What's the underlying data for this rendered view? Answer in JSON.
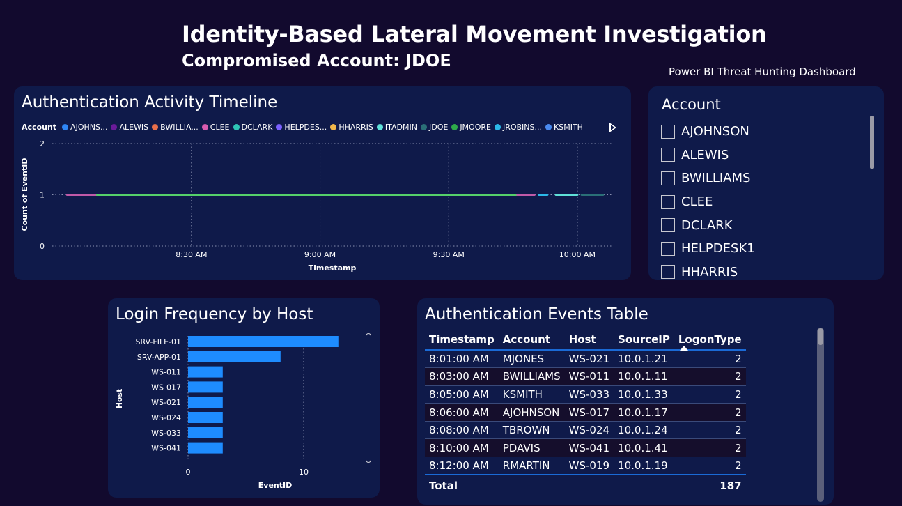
{
  "header": {
    "title": "Identity-Based Lateral Movement Investigation",
    "subtitle": "Compromised Account: JDOE",
    "caption": "Power BI Threat Hunting Dashboard"
  },
  "timeline": {
    "title": "Authentication Activity Timeline",
    "legend_title": "Account",
    "legend_items": [
      {
        "label": "AJOHNS...",
        "color": "#2e86f5"
      },
      {
        "label": "ALEWIS",
        "color": "#6a1b9a"
      },
      {
        "label": "BWILLIA...",
        "color": "#e86f4a"
      },
      {
        "label": "CLEE",
        "color": "#d85bb0"
      },
      {
        "label": "DCLARK",
        "color": "#2ec4b6"
      },
      {
        "label": "HELPDES...",
        "color": "#7b61ff"
      },
      {
        "label": "HHARRIS",
        "color": "#f0b64a"
      },
      {
        "label": "ITADMIN",
        "color": "#5fe0d8"
      },
      {
        "label": "JDOE",
        "color": "#2a6f77"
      },
      {
        "label": "JMOORE",
        "color": "#2eaa4a"
      },
      {
        "label": "JROBINS...",
        "color": "#2bb8e8"
      },
      {
        "label": "KSMITH",
        "color": "#4a8af0"
      }
    ],
    "ylabel": "Count of EventID",
    "xlabel": "Timestamp",
    "yticks": [
      "0",
      "1",
      "2"
    ],
    "xticks": [
      "8:30 AM",
      "9:00 AM",
      "9:30 AM",
      "10:00 AM"
    ]
  },
  "chart_data": [
    {
      "type": "line",
      "title": "Authentication Activity Timeline",
      "xlabel": "Timestamp",
      "ylabel": "Count of EventID",
      "ylim": [
        0,
        2
      ],
      "x_ticks": [
        "8:30 AM",
        "9:00 AM",
        "9:30 AM",
        "10:00 AM"
      ],
      "legend_placement": "top-left",
      "grid": true,
      "series": [
        {
          "name": "CLEE",
          "color": "#c05aa8",
          "segments": [
            [
              "8:01 AM",
              "8:08 AM"
            ]
          ],
          "value": 1
        },
        {
          "name": "JMOORE",
          "color": "#55d06a",
          "segments": [
            [
              "8:08 AM",
              "9:46 AM"
            ]
          ],
          "value": 1
        },
        {
          "name": "CLEE",
          "color": "#c05aa8",
          "segments": [
            [
              "9:46 AM",
              "9:50 AM"
            ]
          ],
          "value": 1
        },
        {
          "name": "JROBINS...",
          "color": "#2bb8e8",
          "segments": [
            [
              "9:51 AM",
              "9:53 AM"
            ]
          ],
          "value": 1
        },
        {
          "name": "ITADMIN",
          "color": "#5fe0d8",
          "segments": [
            [
              "9:55 AM",
              "10:00 AM"
            ]
          ],
          "value": 1
        },
        {
          "name": "JDOE",
          "color": "#2a6f77",
          "segments": [
            [
              "10:01 AM",
              "10:06 AM"
            ]
          ],
          "value": 1
        }
      ]
    },
    {
      "type": "bar",
      "orientation": "horizontal",
      "title": "Login Frequency by Host",
      "xlabel": "EventID",
      "ylabel": "Host",
      "categories": [
        "SRV-FILE-01",
        "SRV-APP-01",
        "WS-011",
        "WS-017",
        "WS-021",
        "WS-024",
        "WS-033",
        "WS-041"
      ],
      "values": [
        13,
        8,
        3,
        3,
        3,
        3,
        3,
        3
      ],
      "x_ticks": [
        "0",
        "10"
      ],
      "xlim": [
        0,
        14
      ],
      "color": "#1e8cff",
      "grid": true
    }
  ],
  "slicer": {
    "title": "Account",
    "items": [
      "AJOHNSON",
      "ALEWIS",
      "BWILLIAMS",
      "CLEE",
      "DCLARK",
      "HELPDESK1",
      "HHARRIS"
    ]
  },
  "hostchart": {
    "title": "Login Frequency by Host",
    "ylabel": "Host",
    "xlabel": "EventID"
  },
  "table": {
    "title": "Authentication Events Table",
    "columns": [
      "Timestamp",
      "Account",
      "Host",
      "SourceIP",
      "LogonType"
    ],
    "rows": [
      [
        "8:01:00 AM",
        "MJONES",
        "WS-021",
        "10.0.1.21",
        "2"
      ],
      [
        "8:03:00 AM",
        "BWILLIAMS",
        "WS-011",
        "10.0.1.11",
        "2"
      ],
      [
        "8:05:00 AM",
        "KSMITH",
        "WS-033",
        "10.0.1.33",
        "2"
      ],
      [
        "8:06:00 AM",
        "AJOHNSON",
        "WS-017",
        "10.0.1.17",
        "2"
      ],
      [
        "8:08:00 AM",
        "TBROWN",
        "WS-024",
        "10.0.1.24",
        "2"
      ],
      [
        "8:10:00 AM",
        "PDAVIS",
        "WS-041",
        "10.0.1.41",
        "2"
      ],
      [
        "8:12:00 AM",
        "RMARTIN",
        "WS-019",
        "10.0.1.19",
        "2"
      ]
    ],
    "total_label": "Total",
    "total_value": "187"
  }
}
